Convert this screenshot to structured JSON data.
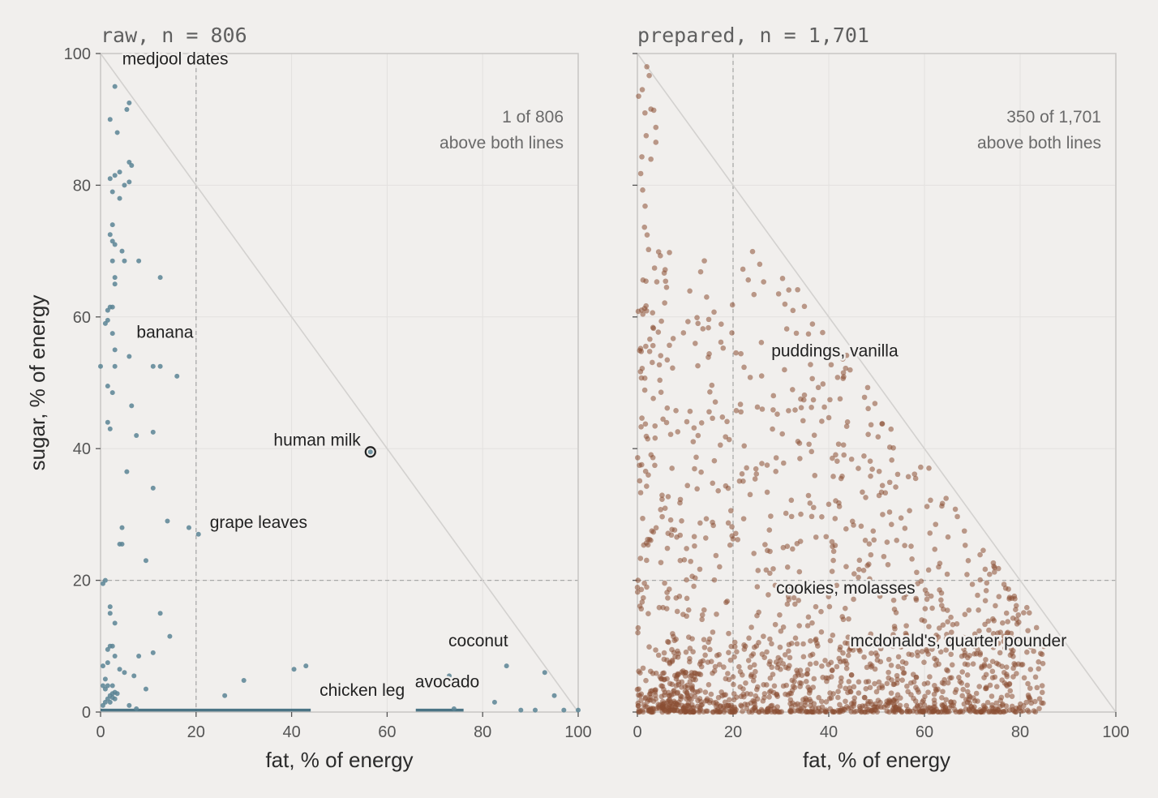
{
  "chart_data": [
    {
      "type": "scatter",
      "title": "raw, n = 806",
      "xlabel": "fat, % of energy",
      "ylabel": "sugar, % of energy",
      "xlim": [
        0,
        100
      ],
      "ylim": [
        0,
        100
      ],
      "xticks": [
        0,
        20,
        40,
        60,
        80,
        100
      ],
      "yticks": [
        0,
        20,
        40,
        60,
        80,
        100
      ],
      "grid": true,
      "reference_lines": {
        "x": 20,
        "y": 20,
        "diagonal": "fat + sugar = 100"
      },
      "count_note": [
        "1 of 806",
        "above both lines"
      ],
      "color": "#5b8494",
      "annotations": [
        {
          "label": "medjool dates",
          "x": 2.5,
          "y": 97.5
        },
        {
          "label": "banana",
          "x": 5.5,
          "y": 56
        },
        {
          "label": "human milk",
          "x": 56.5,
          "y": 39.5,
          "highlight": true
        },
        {
          "label": "grape leaves",
          "x": 20.5,
          "y": 27
        },
        {
          "label": "chicken leg",
          "x": 44.5,
          "y": 1.5
        },
        {
          "label": "avocado",
          "x": 65.5,
          "y": 2.5
        },
        {
          "label": "coconut",
          "x": 72.5,
          "y": 8.5
        }
      ],
      "points": [
        [
          3,
          95
        ],
        [
          5.5,
          91.5
        ],
        [
          6,
          92.5
        ],
        [
          2,
          90
        ],
        [
          3.5,
          88
        ],
        [
          6,
          83.5
        ],
        [
          6.5,
          83
        ],
        [
          4,
          82
        ],
        [
          2,
          81
        ],
        [
          3,
          81.5
        ],
        [
          5,
          80
        ],
        [
          6,
          80.5
        ],
        [
          2.5,
          79
        ],
        [
          4,
          78
        ],
        [
          2.5,
          74
        ],
        [
          2,
          72.5
        ],
        [
          2.5,
          71.5
        ],
        [
          3,
          71
        ],
        [
          4.5,
          70
        ],
        [
          5,
          68.5
        ],
        [
          2.5,
          68.5
        ],
        [
          8,
          68.5
        ],
        [
          12.5,
          66
        ],
        [
          3,
          66
        ],
        [
          3,
          65
        ],
        [
          2,
          61.5
        ],
        [
          2.5,
          61.5
        ],
        [
          1.5,
          61
        ],
        [
          1.5,
          59.5
        ],
        [
          1,
          59
        ],
        [
          2.5,
          57.5
        ],
        [
          3,
          55
        ],
        [
          6,
          54
        ],
        [
          0,
          52.5
        ],
        [
          11,
          52.5
        ],
        [
          12.5,
          52.5
        ],
        [
          16,
          51
        ],
        [
          3,
          52.5
        ],
        [
          1.5,
          49.5
        ],
        [
          2.5,
          48.5
        ],
        [
          6.5,
          46.5
        ],
        [
          1.5,
          44
        ],
        [
          2,
          43
        ],
        [
          7.5,
          42
        ],
        [
          11,
          42.5
        ],
        [
          5.5,
          36.5
        ],
        [
          11,
          34
        ],
        [
          4.5,
          28
        ],
        [
          14,
          29
        ],
        [
          18.5,
          28
        ],
        [
          20.5,
          27
        ],
        [
          4,
          25.5
        ],
        [
          4.5,
          25.5
        ],
        [
          9.5,
          23
        ],
        [
          0.5,
          19.5
        ],
        [
          1,
          20
        ],
        [
          2,
          16
        ],
        [
          2,
          15
        ],
        [
          12.5,
          15
        ],
        [
          3,
          13.5
        ],
        [
          14.5,
          11.5
        ],
        [
          2,
          10
        ],
        [
          2.5,
          10
        ],
        [
          1.5,
          9.5
        ],
        [
          8,
          8.5
        ],
        [
          11,
          9
        ],
        [
          0.5,
          7
        ],
        [
          1.5,
          7.5
        ],
        [
          3,
          8.5
        ],
        [
          4,
          6.5
        ],
        [
          5,
          6
        ],
        [
          7,
          5.5
        ],
        [
          1,
          5
        ],
        [
          2.5,
          4
        ],
        [
          0.5,
          4
        ],
        [
          1.5,
          4
        ],
        [
          3,
          3
        ],
        [
          2.5,
          2.8
        ],
        [
          3.5,
          2.8
        ],
        [
          2,
          2.5
        ],
        [
          2.5,
          2.2
        ],
        [
          3,
          2
        ],
        [
          1.5,
          2
        ],
        [
          1,
          3.5
        ],
        [
          9.5,
          3.5
        ],
        [
          0.5,
          1
        ],
        [
          1,
          1.5
        ],
        [
          2,
          1.5
        ],
        [
          6,
          1
        ],
        [
          7.5,
          0.5
        ],
        [
          26,
          2.5
        ],
        [
          30,
          4.8
        ],
        [
          40.5,
          6.5
        ],
        [
          43,
          7
        ],
        [
          73,
          5.5
        ],
        [
          85,
          7
        ],
        [
          93,
          6
        ],
        [
          95,
          2.5
        ],
        [
          82.5,
          1.5
        ],
        [
          74,
          0.5
        ],
        [
          88,
          0.3
        ],
        [
          91,
          0.3
        ],
        [
          97,
          0.3
        ],
        [
          100,
          0.3
        ],
        [
          56.5,
          39.5
        ]
      ],
      "dense_segments": [
        [
          0,
          44
        ],
        [
          66,
          76
        ]
      ]
    },
    {
      "type": "scatter",
      "title": "prepared, n = 1,701",
      "xlabel": "fat, % of energy",
      "ylabel": "",
      "xlim": [
        0,
        100
      ],
      "ylim": [
        0,
        100
      ],
      "xticks": [
        0,
        20,
        40,
        60,
        80,
        100
      ],
      "yticks": [
        0,
        20,
        40,
        60,
        80,
        100
      ],
      "grid": true,
      "reference_lines": {
        "x": 20,
        "y": 20,
        "diagonal": "fat + sugar = 100"
      },
      "count_note": [
        "350 of 1,701",
        "above both lines"
      ],
      "color": "#8b4f33",
      "annotations": [
        {
          "label": "puddings, vanilla",
          "x": 28,
          "y": 54
        },
        {
          "label": "cookies, molasses",
          "x": 29,
          "y": 18
        },
        {
          "label": "mcdonald's, quarter pounder",
          "x": 44.5,
          "y": 10
        }
      ],
      "seed": 1701
    }
  ]
}
